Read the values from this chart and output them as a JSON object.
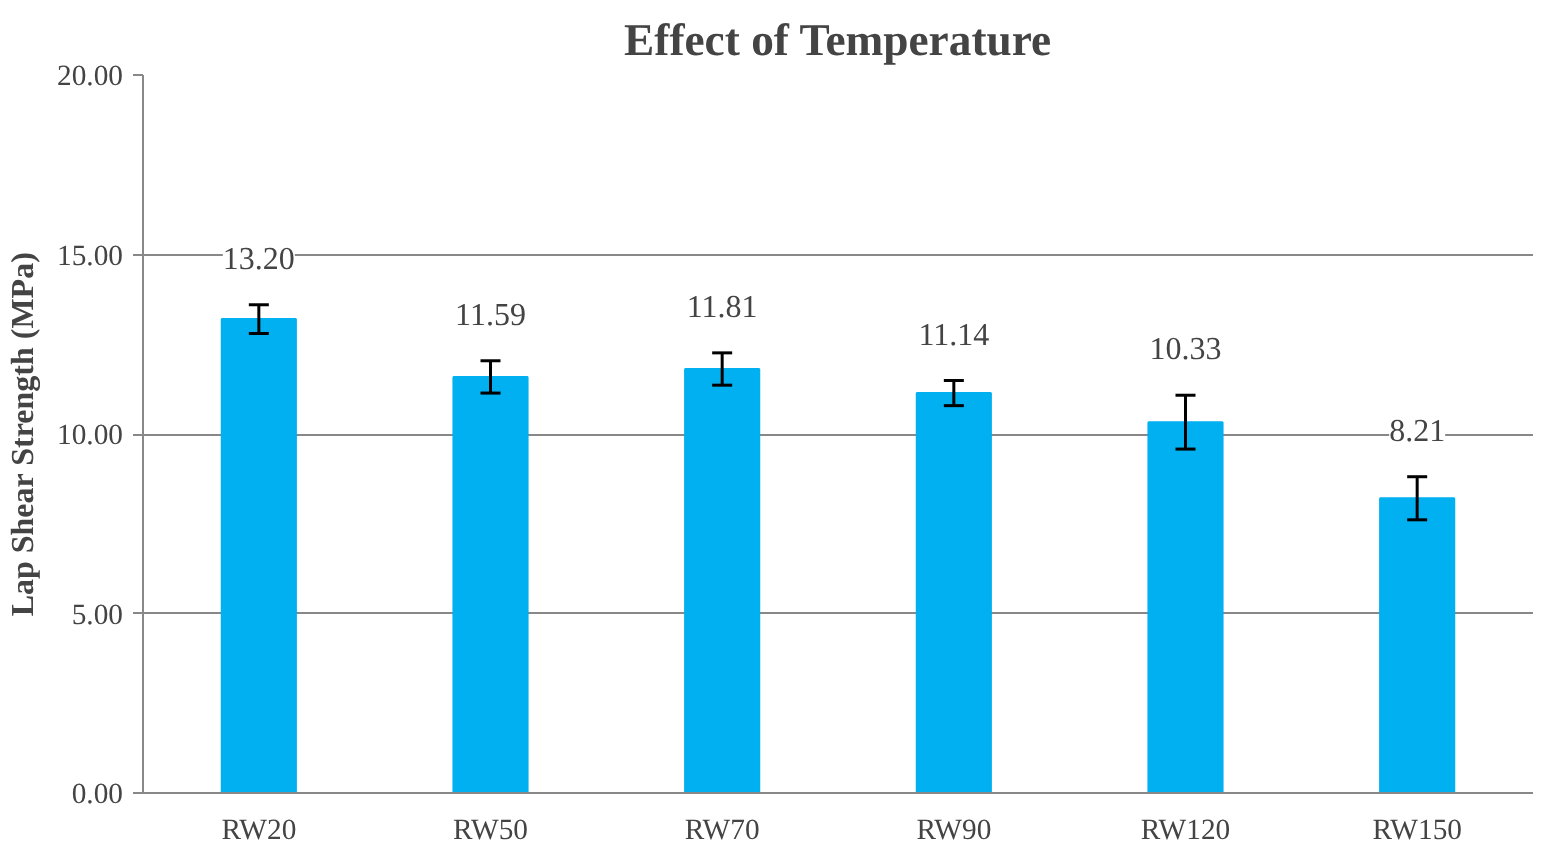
{
  "chart_data": {
    "type": "bar",
    "title": "Effect of Temperature",
    "ylabel": "Lap Shear Strength (MPa)",
    "categories": [
      "RW20",
      "RW50",
      "RW70",
      "RW90",
      "RW120",
      "RW150"
    ],
    "values": [
      13.2,
      11.59,
      11.81,
      11.14,
      10.33,
      8.21
    ],
    "value_labels": [
      "13.20",
      "11.59",
      "11.81",
      "11.14",
      "10.33",
      "8.21"
    ],
    "errors": [
      0.4,
      0.45,
      0.45,
      0.35,
      0.75,
      0.6
    ],
    "color": "#00b0f0",
    "ylim": [
      0,
      20
    ],
    "yticks": [
      {
        "value": 0,
        "label": "0.00"
      },
      {
        "value": 5,
        "label": "5.00"
      },
      {
        "value": 10,
        "label": "10.00"
      },
      {
        "value": 15,
        "label": "15.00"
      },
      {
        "value": 20,
        "label": "20.00"
      }
    ],
    "grid": "y"
  }
}
